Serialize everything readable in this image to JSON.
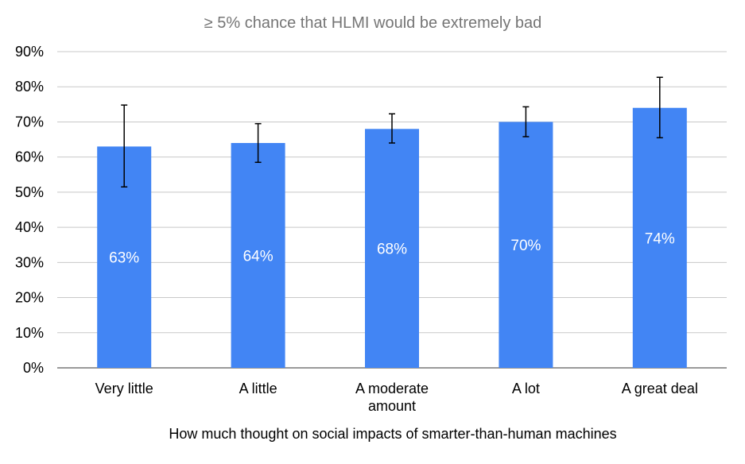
{
  "chart_data": {
    "type": "bar",
    "title": "≥ 5% chance that HLMI would be extremely bad",
    "xlabel": "How much thought on social impacts of smarter-than-human machines",
    "ylabel": "",
    "categories": [
      [
        "Very little"
      ],
      [
        "A little"
      ],
      [
        "A moderate",
        "amount"
      ],
      [
        "A lot"
      ],
      [
        "A great deal"
      ]
    ],
    "values": [
      63,
      64,
      68,
      70,
      74
    ],
    "data_labels": [
      "63%",
      "64%",
      "68%",
      "70%",
      "74%"
    ],
    "error_bars": [
      {
        "low": 51.5,
        "high": 74.8
      },
      {
        "low": 58.5,
        "high": 69.5
      },
      {
        "low": 64.0,
        "high": 72.3
      },
      {
        "low": 65.8,
        "high": 74.3
      },
      {
        "low": 65.5,
        "high": 82.7
      }
    ],
    "ylim": [
      0,
      90
    ],
    "yticks": [
      0,
      10,
      20,
      30,
      40,
      50,
      60,
      70,
      80,
      90
    ],
    "ytick_labels": [
      "0%",
      "10%",
      "20%",
      "30%",
      "40%",
      "50%",
      "60%",
      "70%",
      "80%",
      "90%"
    ],
    "grid": true,
    "legend": "none",
    "colors": {
      "bar": "#4285f4",
      "data_label": "#ffffff",
      "grid": "#c8c8c8",
      "axis_text": "#000000",
      "title": "#757575",
      "error_bar": "#000000"
    }
  }
}
